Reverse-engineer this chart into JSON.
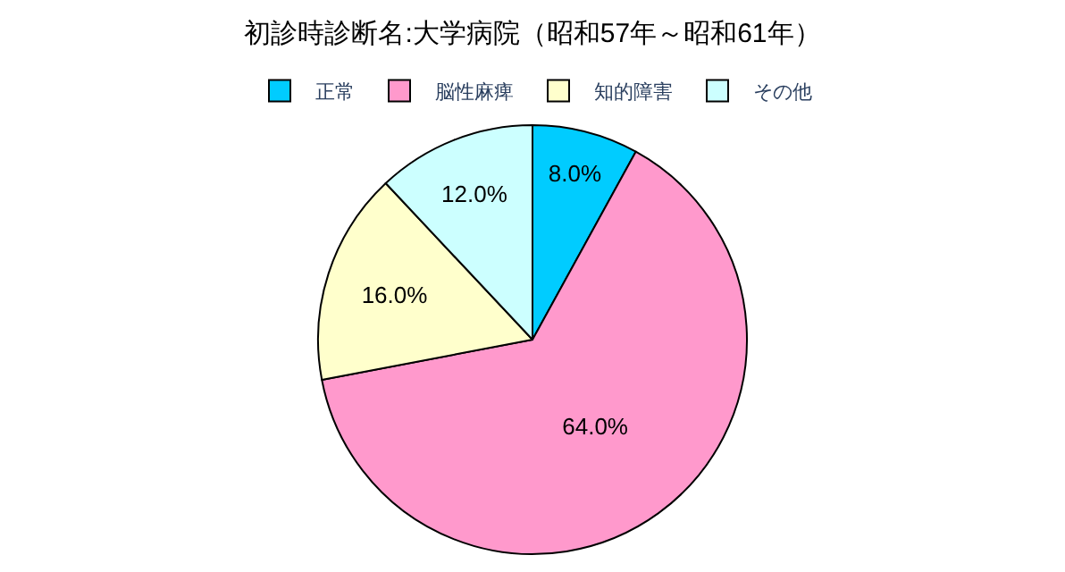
{
  "chart_data": {
    "type": "pie",
    "title": "初診時診断名:大学病院（昭和57年～昭和61年）",
    "categories": [
      "正常",
      "脳性麻痺",
      "知的障害",
      "その他"
    ],
    "values": [
      8.0,
      64.0,
      16.0,
      12.0
    ],
    "colors": [
      "#00ccff",
      "#ff99cc",
      "#ffffcc",
      "#ccffff"
    ],
    "value_labels": [
      "8.0%",
      "64.0%",
      "16.0%",
      "12.0%"
    ],
    "legend": "top"
  }
}
